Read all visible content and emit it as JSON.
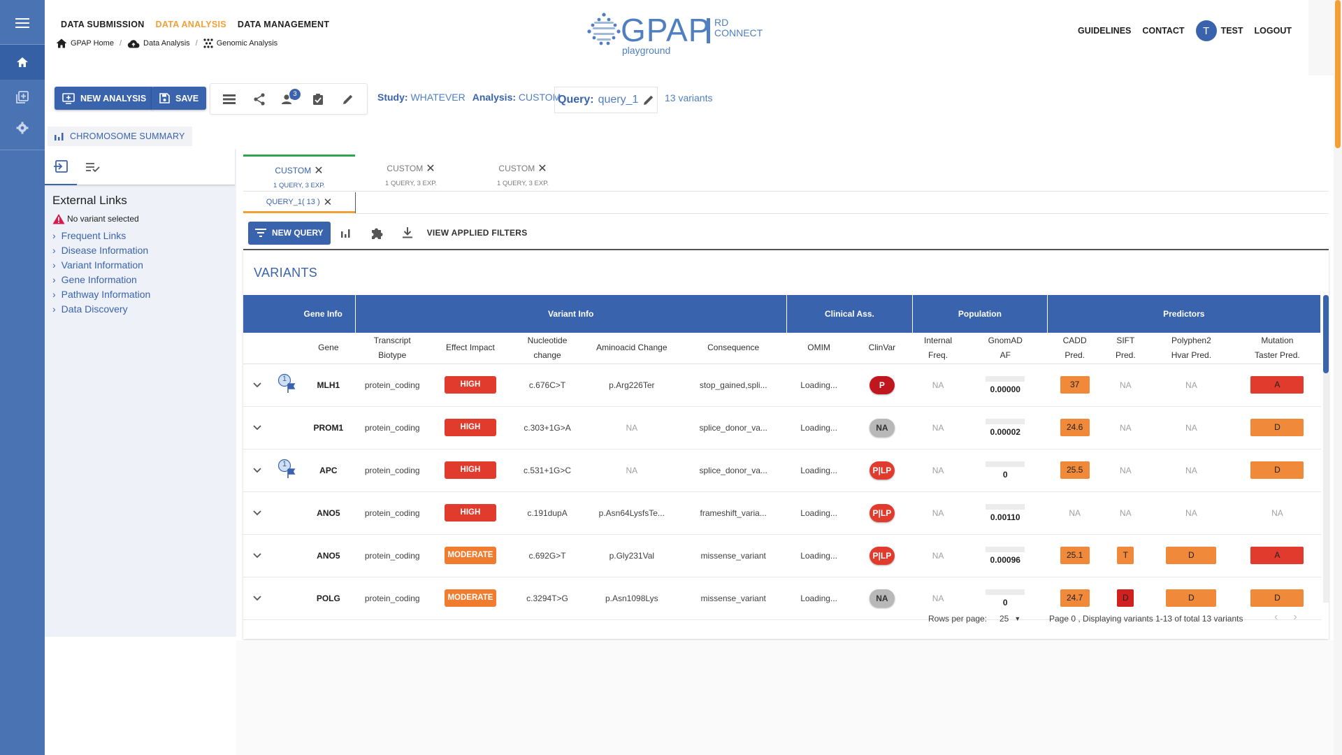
{
  "nav": {
    "top": [
      "DATA SUBMISSION",
      "DATA ANALYSIS",
      "DATA MANAGEMENT"
    ],
    "active_index": 1,
    "breadcrumbs": [
      "GPAP Home",
      "Data Analysis",
      "Genomic Analysis"
    ],
    "right": {
      "guidelines": "GUIDELINES",
      "contact": "CONTACT",
      "avatar": "T",
      "user": "TEST",
      "logout": "LOGOUT"
    }
  },
  "logo": {
    "main": "GPAP",
    "rd": "RD",
    "connect": "CONNECT",
    "sub": "playground"
  },
  "toolbar": {
    "new_analysis": "NEW ANALYSIS",
    "save": "SAVE",
    "badge_count": "3",
    "study_label": "Study:",
    "study_value": "WHATEVER",
    "analysis_label": "Analysis:",
    "analysis_value": "CUSTOM",
    "query_label": "Query:",
    "query_value": "query_1",
    "variant_count": "13 variants"
  },
  "chromosome_summary": "CHROMOSOME SUMMARY",
  "left_panel": {
    "title": "External Links",
    "no_variant": "No variant selected",
    "links": [
      "Frequent Links",
      "Disease Information",
      "Variant Information",
      "Gene Information",
      "Pathway Information",
      "Data Discovery"
    ]
  },
  "analysis_tabs": [
    {
      "label": "CUSTOM",
      "sub": "1 QUERY, 3 EXP."
    },
    {
      "label": "CUSTOM",
      "sub": "1 QUERY, 3 EXP."
    },
    {
      "label": "CUSTOM",
      "sub": "1 QUERY, 3 EXP."
    }
  ],
  "query_tab": "QUERY_1( 13 )",
  "actions": {
    "new_query": "NEW QUERY",
    "view_filters": "VIEW APPLIED FILTERS"
  },
  "variants": {
    "title": "VARIANTS",
    "groups": [
      "Gene Info",
      "Variant Info",
      "Clinical Ass.",
      "Population",
      "Predictors"
    ],
    "columns": {
      "gene": "Gene",
      "biotype": [
        "Transcript",
        "Biotype"
      ],
      "impact": "Effect Impact",
      "nucleotide": [
        "Nucleotide",
        "change"
      ],
      "aminoacid": "Aminoacid Change",
      "consequence": "Consequence",
      "omim": "OMIM",
      "clinvar": "ClinVar",
      "internal": [
        "Internal",
        "Freq."
      ],
      "gnomad": [
        "GnomAD",
        "AF"
      ],
      "cadd": [
        "CADD",
        "Pred."
      ],
      "sift": [
        "SIFT",
        "Pred."
      ],
      "polyphen": [
        "Polyphen2",
        "Hvar Pred."
      ],
      "mutation": [
        "Mutation",
        "Taster Pred."
      ]
    },
    "rows": [
      {
        "flag": "1",
        "gene": "MLH1",
        "biotype": "protein_coding",
        "impact": "HIGH",
        "nuc": "c.676C>T",
        "aa": "p.Arg226Ter",
        "cons": "stop_gained,spli...",
        "omim": "Loading...",
        "clinvar": "P",
        "internal": "NA",
        "gnomad": "0.00000",
        "cadd": "37",
        "sift": "NA",
        "polyphen": "NA",
        "mutation": "A"
      },
      {
        "flag": "",
        "gene": "PROM1",
        "biotype": "protein_coding",
        "impact": "HIGH",
        "nuc": "c.303+1G>A",
        "aa": "NA",
        "cons": "splice_donor_va...",
        "omim": "Loading...",
        "clinvar": "NA",
        "internal": "NA",
        "gnomad": "0.00002",
        "cadd": "24.6",
        "sift": "NA",
        "polyphen": "NA",
        "mutation": "D"
      },
      {
        "flag": "1",
        "gene": "APC",
        "biotype": "protein_coding",
        "impact": "HIGH",
        "nuc": "c.531+1G>C",
        "aa": "NA",
        "cons": "splice_donor_va...",
        "omim": "Loading...",
        "clinvar": "P|LP",
        "internal": "NA",
        "gnomad": "0",
        "cadd": "25.5",
        "sift": "NA",
        "polyphen": "NA",
        "mutation": "D"
      },
      {
        "flag": "",
        "gene": "ANO5",
        "biotype": "protein_coding",
        "impact": "HIGH",
        "nuc": "c.191dupA",
        "aa": "p.Asn64LysfsTe...",
        "cons": "frameshift_varia...",
        "omim": "Loading...",
        "clinvar": "P|LP",
        "internal": "NA",
        "gnomad": "0.00110",
        "cadd": "NA",
        "sift": "NA",
        "polyphen": "NA",
        "mutation": "NA"
      },
      {
        "flag": "",
        "gene": "ANO5",
        "biotype": "protein_coding",
        "impact": "MODERATE",
        "nuc": "c.692G>T",
        "aa": "p.Gly231Val",
        "cons": "missense_variant",
        "omim": "Loading...",
        "clinvar": "P|LP",
        "internal": "NA",
        "gnomad": "0.00096",
        "cadd": "25.1",
        "sift": "T",
        "polyphen": "D",
        "mutation": "A"
      },
      {
        "flag": "",
        "gene": "POLG",
        "biotype": "protein_coding",
        "impact": "MODERATE",
        "nuc": "c.3294T>G",
        "aa": "p.Asn1098Lys",
        "cons": "missense_variant",
        "omim": "Loading...",
        "clinvar": "NA",
        "internal": "NA",
        "gnomad": "0",
        "cadd": "24.7",
        "sift": "D",
        "polyphen": "D",
        "mutation": "D"
      }
    ]
  },
  "pager": {
    "rows_label": "Rows per page:",
    "rows_value": "25",
    "info": "Page 0 , Displaying variants 1-13 of total 13 variants"
  }
}
